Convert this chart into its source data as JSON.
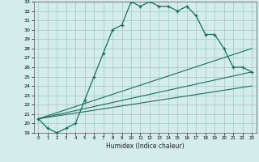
{
  "xlabel": "Humidex (Indice chaleur)",
  "bg_color": "#d4ecec",
  "grid_color": "#a0c8c8",
  "line_color": "#1a6e60",
  "xlim": [
    -0.5,
    23.5
  ],
  "ylim": [
    19,
    33
  ],
  "yticks": [
    19,
    20,
    21,
    22,
    23,
    24,
    25,
    26,
    27,
    28,
    29,
    30,
    31,
    32,
    33
  ],
  "xticks": [
    0,
    1,
    2,
    3,
    4,
    5,
    6,
    7,
    8,
    9,
    10,
    11,
    12,
    13,
    14,
    15,
    16,
    17,
    18,
    19,
    20,
    21,
    22,
    23
  ],
  "main_x": [
    0,
    1,
    2,
    3,
    4,
    5,
    6,
    7,
    8,
    9,
    10,
    11,
    12,
    13,
    14,
    15,
    16,
    17,
    18,
    19,
    20,
    21,
    22,
    23
  ],
  "main_y": [
    20.5,
    19.5,
    19.0,
    19.5,
    20.0,
    22.5,
    25.0,
    27.5,
    30.0,
    30.5,
    33.0,
    32.5,
    33.0,
    32.5,
    32.5,
    32.0,
    32.5,
    31.5,
    29.5,
    29.5,
    28.0,
    26.0,
    26.0,
    25.5
  ],
  "line2_x": [
    0,
    23
  ],
  "line2_y": [
    20.5,
    28.0
  ],
  "line3_x": [
    0,
    23
  ],
  "line3_y": [
    20.5,
    25.5
  ],
  "line4_x": [
    0,
    23
  ],
  "line4_y": [
    20.5,
    24.0
  ]
}
